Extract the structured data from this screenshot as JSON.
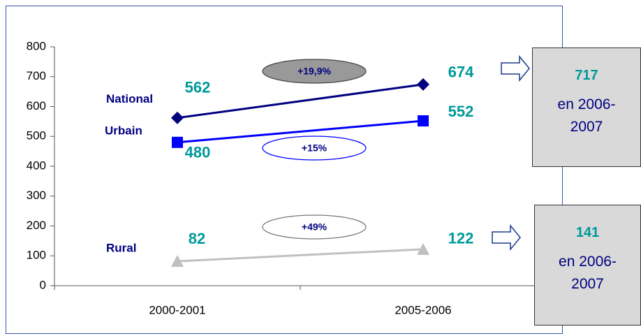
{
  "chart_data": {
    "type": "line",
    "categories": [
      "2000-2001",
      "2005-2006"
    ],
    "series": [
      {
        "name": "National",
        "color": "#000080",
        "marker": "diamond",
        "values": [
          562,
          674
        ]
      },
      {
        "name": "Urbain",
        "color": "#0000ff",
        "marker": "square",
        "values": [
          480,
          552
        ]
      },
      {
        "name": "Rural",
        "color": "#c0c0c0",
        "marker": "triangle",
        "values": [
          82,
          122
        ]
      }
    ],
    "ylim": [
      0,
      800
    ],
    "yticks": [
      0,
      100,
      200,
      300,
      400,
      500,
      600,
      700,
      800
    ],
    "grid": false,
    "annotations": [
      {
        "text": "+19,9%",
        "style": "filled"
      },
      {
        "text": "+15%",
        "style": "blue"
      },
      {
        "text": "+49%",
        "style": "gray"
      }
    ],
    "projections": [
      {
        "value": 717,
        "label": "en 2006-2007"
      },
      {
        "value": 141,
        "label": "en 2006-2007"
      }
    ]
  }
}
